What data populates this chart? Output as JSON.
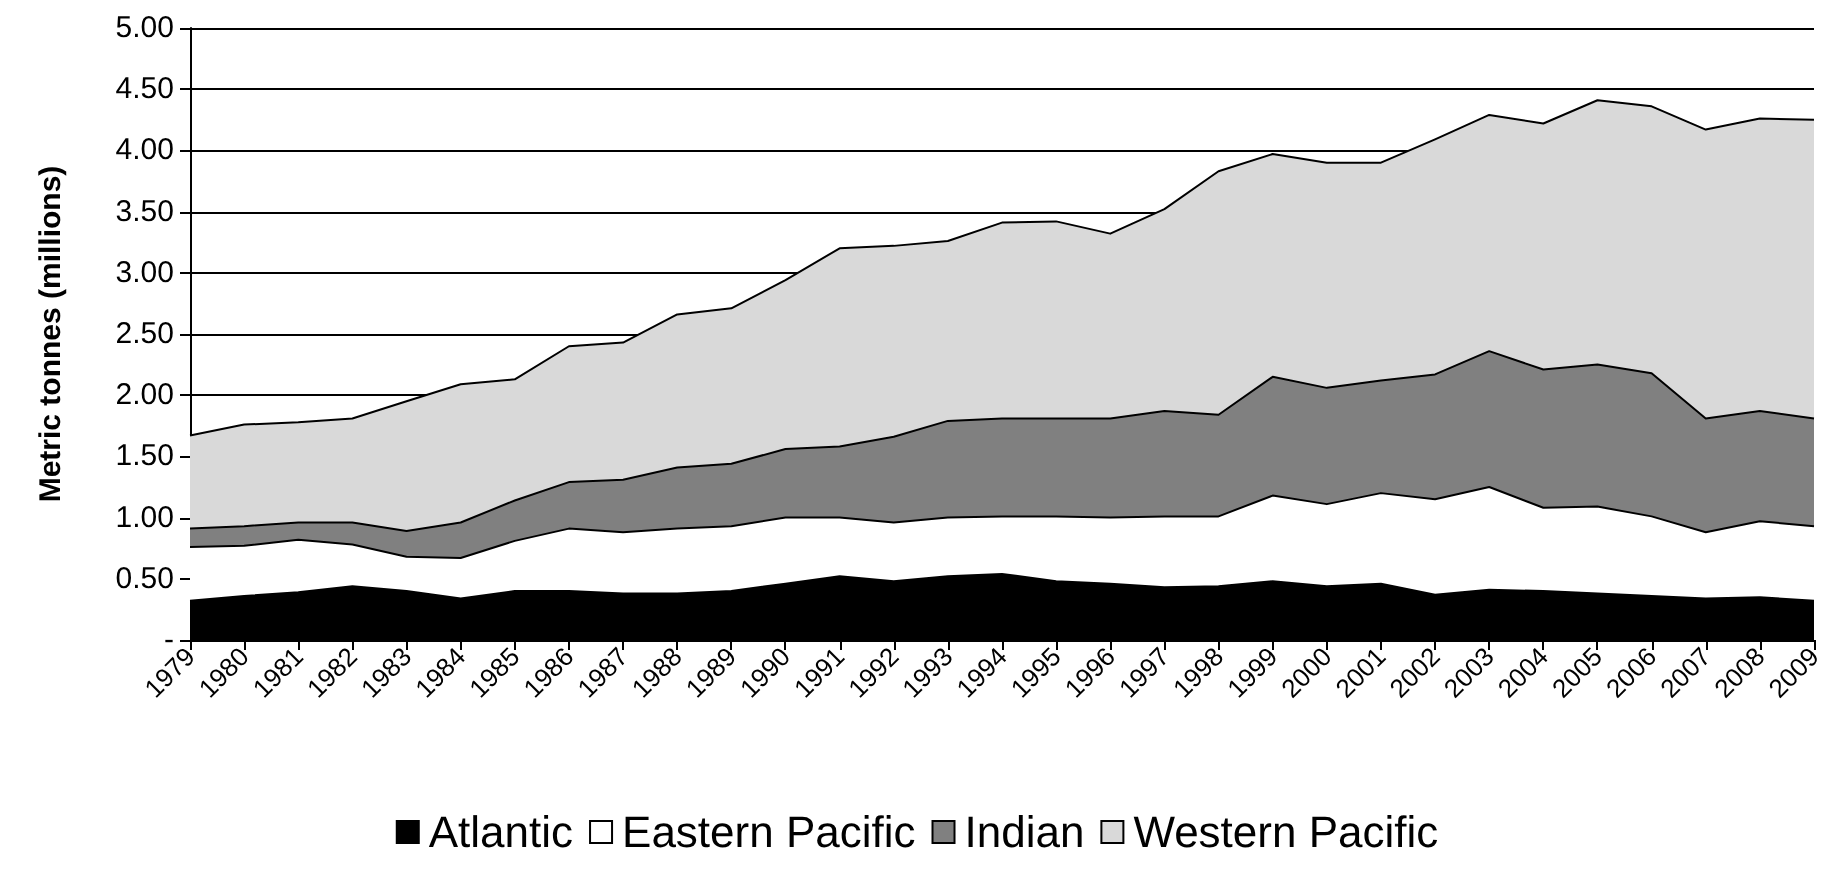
{
  "chart_data": {
    "type": "area",
    "stacked": true,
    "ylabel": "Metric tonnes (millions)",
    "categories": [
      "1979",
      "1980",
      "1981",
      "1982",
      "1983",
      "1984",
      "1985",
      "1986",
      "1987",
      "1988",
      "1989",
      "1990",
      "1991",
      "1992",
      "1993",
      "1994",
      "1995",
      "1996",
      "1997",
      "1998",
      "1999",
      "2000",
      "2001",
      "2002",
      "2003",
      "2004",
      "2005",
      "2006",
      "2007",
      "2008",
      "2009"
    ],
    "series": [
      {
        "name": "Atlantic",
        "color": "#000000",
        "values": [
          0.32,
          0.36,
          0.39,
          0.44,
          0.4,
          0.34,
          0.4,
          0.4,
          0.38,
          0.38,
          0.4,
          0.46,
          0.52,
          0.48,
          0.52,
          0.54,
          0.48,
          0.46,
          0.43,
          0.44,
          0.48,
          0.44,
          0.46,
          0.37,
          0.41,
          0.4,
          0.38,
          0.36,
          0.34,
          0.35,
          0.32
        ]
      },
      {
        "name": "Eastern Pacific",
        "color": "#ffffff",
        "values": [
          0.44,
          0.41,
          0.43,
          0.34,
          0.28,
          0.33,
          0.41,
          0.51,
          0.5,
          0.53,
          0.53,
          0.54,
          0.48,
          0.48,
          0.48,
          0.47,
          0.53,
          0.54,
          0.58,
          0.57,
          0.7,
          0.67,
          0.74,
          0.78,
          0.84,
          0.68,
          0.71,
          0.65,
          0.54,
          0.62,
          0.61
        ]
      },
      {
        "name": "Indian",
        "color": "#808080",
        "values": [
          0.15,
          0.16,
          0.14,
          0.18,
          0.21,
          0.29,
          0.33,
          0.38,
          0.43,
          0.5,
          0.51,
          0.56,
          0.58,
          0.7,
          0.79,
          0.8,
          0.8,
          0.81,
          0.86,
          0.83,
          0.97,
          0.95,
          0.92,
          1.02,
          1.11,
          1.13,
          1.16,
          1.17,
          0.93,
          0.9,
          0.88
        ]
      },
      {
        "name": "Western Pacific",
        "color": "#d9d9d9",
        "values": [
          0.76,
          0.83,
          0.82,
          0.85,
          1.06,
          1.13,
          0.99,
          1.11,
          1.12,
          1.25,
          1.27,
          1.38,
          1.62,
          1.56,
          1.47,
          1.6,
          1.61,
          1.51,
          1.65,
          1.99,
          1.82,
          1.84,
          1.78,
          1.92,
          1.93,
          2.01,
          2.16,
          2.18,
          2.36,
          2.39,
          2.44
        ]
      }
    ],
    "ylim": [
      0,
      5
    ],
    "yticks": [
      {
        "value": 0,
        "label": "-"
      },
      {
        "value": 0.5,
        "label": "0.50"
      },
      {
        "value": 1,
        "label": "1.00"
      },
      {
        "value": 1.5,
        "label": "1.50"
      },
      {
        "value": 2,
        "label": "2.00"
      },
      {
        "value": 2.5,
        "label": "2.50"
      },
      {
        "value": 3,
        "label": "3.00"
      },
      {
        "value": 3.5,
        "label": "3.50"
      },
      {
        "value": 4,
        "label": "4.00"
      },
      {
        "value": 4.5,
        "label": "4.50"
      },
      {
        "value": 5,
        "label": "5.00"
      }
    ],
    "grid": "y",
    "legend": "bottom"
  }
}
